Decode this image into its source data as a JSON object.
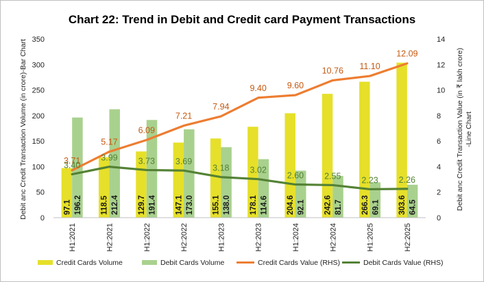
{
  "chart_data": {
    "type": "bar",
    "title": "Chart 22: Trend in Debit and Credit card Payment Transactions",
    "categories": [
      "H1:2021",
      "H2:2021",
      "H1:2022",
      "H2:2022",
      "H1:2023",
      "H2:2023",
      "H1:2024",
      "H2:2024",
      "H1:2025",
      "H2:2025"
    ],
    "ylabel": "Debit anc Credit Transaction Volume (in crore)-Bar Chart",
    "y2label_line1": "Debit anc Credit Transaction Value  (in ₹ lakh crore)",
    "y2label_line2": "-Line Chart",
    "ylim": [
      0,
      350
    ],
    "y2lim": [
      0,
      14
    ],
    "yticks": [
      "0",
      "50",
      "100",
      "150",
      "200",
      "250",
      "300",
      "350"
    ],
    "y2ticks": [
      "0",
      "2",
      "4",
      "6",
      "8",
      "10",
      "12",
      "14"
    ],
    "grid": false,
    "legend_position": "bottom",
    "series": [
      {
        "name": "Credit Cards Volume",
        "kind": "bar",
        "axis": "left",
        "color": "#e6e02a",
        "values": [
          97.1,
          118.5,
          129.7,
          147.1,
          155.1,
          178.1,
          204.6,
          242.6,
          266.3,
          303.6
        ],
        "labels": [
          "97.1",
          "118.5",
          "129.7",
          "147.1",
          "155.1",
          "178.1",
          "204.6",
          "242.6",
          "266.3",
          "303.6"
        ]
      },
      {
        "name": "Debit Cards Volume",
        "kind": "bar",
        "axis": "left",
        "color": "#a9d18e",
        "values": [
          196.2,
          212.4,
          191.4,
          173.0,
          138.0,
          114.6,
          92.1,
          81.7,
          69.1,
          64.5
        ],
        "labels": [
          "196.2",
          "212.4",
          "191.4",
          "173.0",
          "138.0",
          "114.6",
          "92.1",
          "81.7",
          "69.1",
          "64.5"
        ]
      },
      {
        "name": "Credit Cards  Value (RHS)",
        "kind": "line",
        "axis": "right",
        "color": "#ed7d31",
        "label_color": "#c55a11",
        "values": [
          3.71,
          5.17,
          6.09,
          7.21,
          7.94,
          9.4,
          9.6,
          10.76,
          11.1,
          12.09
        ],
        "labels": [
          "3.71",
          "5.17",
          "6.09",
          "7.21",
          "7.94",
          "9.40",
          "9.60",
          "10.76",
          "11.10",
          "12.09"
        ]
      },
      {
        "name": "Debit Cards  Value (RHS)",
        "kind": "line",
        "axis": "right",
        "color": "#548235",
        "label_color": "#548235",
        "values": [
          3.4,
          3.99,
          3.73,
          3.69,
          3.18,
          3.02,
          2.6,
          2.55,
          2.23,
          2.26
        ],
        "labels": [
          "3.40",
          "3.99",
          "3.73",
          "3.69",
          "3.18",
          "3.02",
          "2.60",
          "2.55",
          "2.23",
          "2.26"
        ]
      }
    ]
  }
}
